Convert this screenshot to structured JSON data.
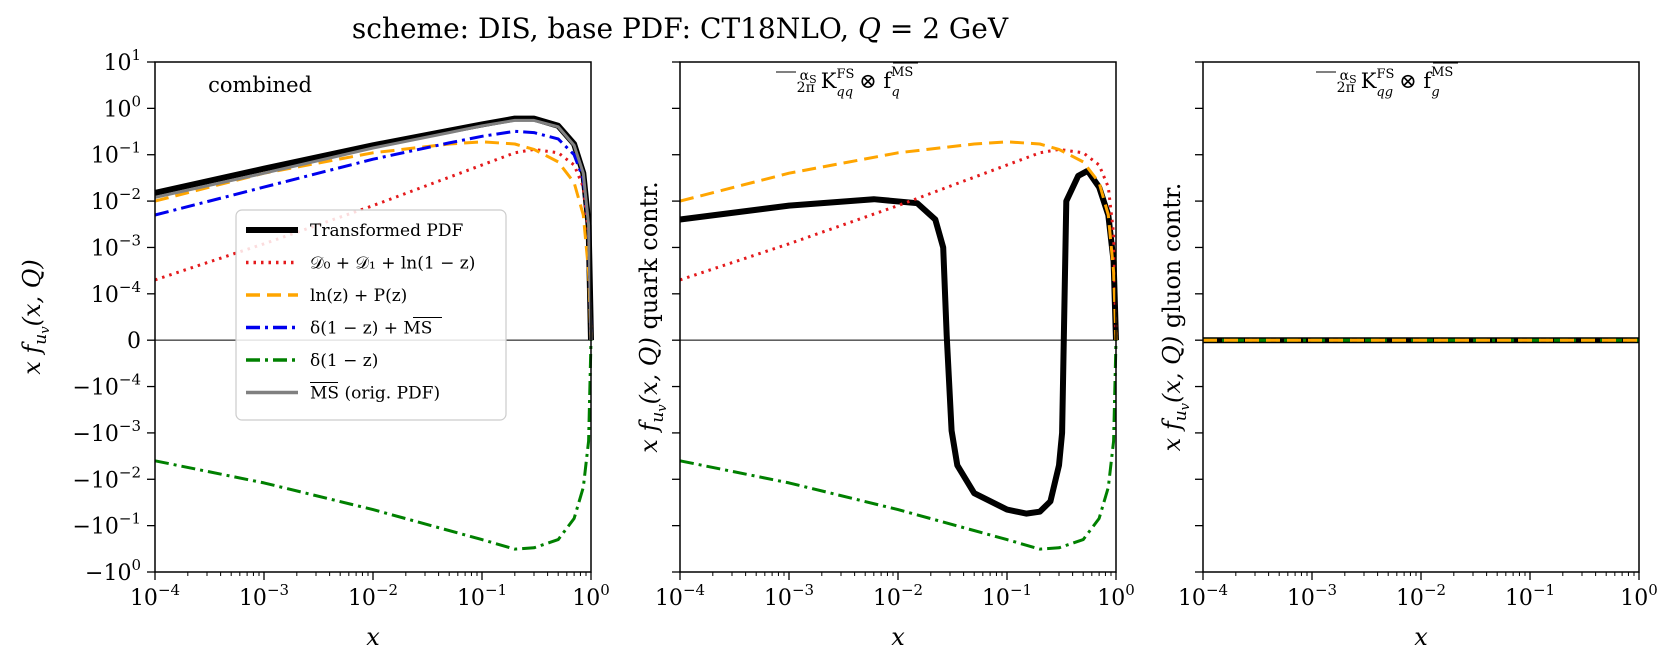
{
  "figure_title": "scheme: DIS, base PDF: CT18NLO, Q = 2 GeV",
  "chart_data": [
    {
      "type": "line",
      "panel": "left",
      "title": "combined",
      "xlabel": "x",
      "ylabel": "x f_{u_v}(x, Q)",
      "xscale": "log",
      "yscale": "symlog",
      "xlim": [
        0.0001,
        1
      ],
      "ylim": [
        -1,
        10
      ],
      "x_ticks": [
        "10^-4",
        "10^-3",
        "10^-2",
        "10^-1",
        "10^0"
      ],
      "y_ticks": [
        "10^1",
        "10^0",
        "10^-1",
        "10^-2",
        "10^-3",
        "10^-4",
        "0",
        "-10^-4",
        "-10^-3",
        "-10^-2",
        "-10^-1",
        "-10^0"
      ],
      "legend_position": "center-left",
      "series": [
        {
          "name": "Transformed PDF",
          "color": "#000000",
          "style": "solid",
          "x": [
            0.0001,
            0.001,
            0.01,
            0.05,
            0.1,
            0.2,
            0.3,
            0.5,
            0.7,
            0.85,
            0.95,
            1.0
          ],
          "y": [
            0.015,
            0.05,
            0.16,
            0.33,
            0.45,
            0.6,
            0.6,
            0.42,
            0.17,
            0.04,
            0.003,
            0
          ]
        },
        {
          "name": "D0 + D1 + ln(1 - z)",
          "color": "#e41a1c",
          "style": "dotted",
          "x": [
            0.0001,
            0.001,
            0.01,
            0.1,
            0.2,
            0.3,
            0.5,
            0.7,
            0.85,
            0.95,
            1.0
          ],
          "y": [
            0.0002,
            0.0012,
            0.008,
            0.06,
            0.11,
            0.13,
            0.11,
            0.06,
            0.02,
            0.002,
            0
          ]
        },
        {
          "name": "ln(z) + P(z)",
          "color": "#ffa500",
          "style": "dashed",
          "x": [
            0.0001,
            0.001,
            0.01,
            0.05,
            0.1,
            0.2,
            0.3,
            0.5,
            0.7,
            0.85,
            0.95,
            1.0
          ],
          "y": [
            0.01,
            0.04,
            0.11,
            0.17,
            0.19,
            0.17,
            0.13,
            0.07,
            0.025,
            0.005,
            0.0003,
            0
          ]
        },
        {
          "name": "δ(1 - z) + MS-bar",
          "color": "#0000ee",
          "style": "dashdot",
          "x": [
            0.0001,
            0.001,
            0.01,
            0.05,
            0.1,
            0.2,
            0.3,
            0.5,
            0.7,
            0.85,
            0.95,
            1.0
          ],
          "y": [
            0.005,
            0.02,
            0.08,
            0.18,
            0.25,
            0.32,
            0.3,
            0.22,
            0.1,
            0.03,
            0.003,
            0
          ]
        },
        {
          "name": "δ(1 - z)",
          "color": "#008000",
          "style": "dashdot",
          "x": [
            0.0001,
            0.001,
            0.01,
            0.1,
            0.2,
            0.3,
            0.5,
            0.7,
            0.85,
            0.95,
            1.0
          ],
          "y": [
            -0.004,
            -0.012,
            -0.045,
            -0.2,
            -0.32,
            -0.3,
            -0.2,
            -0.07,
            -0.015,
            -0.0015,
            0
          ]
        },
        {
          "name": "MS-bar (orig. PDF)",
          "color": "#808080",
          "style": "solid",
          "x": [
            0.0001,
            0.001,
            0.01,
            0.05,
            0.1,
            0.2,
            0.3,
            0.5,
            0.7,
            0.85,
            0.95,
            1.0
          ],
          "y": [
            0.012,
            0.04,
            0.14,
            0.3,
            0.42,
            0.55,
            0.55,
            0.4,
            0.16,
            0.04,
            0.003,
            0
          ]
        }
      ]
    },
    {
      "type": "line",
      "panel": "middle",
      "title": "αS/2π K^FS_qq ⊗ f_q^MS-bar",
      "xlabel": "x",
      "ylabel": "x f_{u_v}(x, Q) quark contr.",
      "xscale": "log",
      "yscale": "symlog",
      "xlim": [
        0.0001,
        1
      ],
      "ylim": [
        -1,
        10
      ],
      "x_ticks": [
        "10^-4",
        "10^-3",
        "10^-2",
        "10^-1",
        "10^0"
      ],
      "series": [
        {
          "name": "Transformed PDF",
          "color": "#000000",
          "style": "solid",
          "x": [
            0.0001,
            0.001,
            0.006,
            0.015,
            0.022,
            0.026,
            0.028,
            0.031,
            0.035,
            0.05,
            0.1,
            0.15,
            0.2,
            0.25,
            0.3,
            0.32,
            0.35,
            0.45,
            0.55,
            0.7,
            0.85,
            0.95,
            1.0
          ],
          "y": [
            0.004,
            0.008,
            0.011,
            0.009,
            0.004,
            0.001,
            1e-05,
            -0.0009,
            -0.005,
            -0.02,
            -0.045,
            -0.055,
            -0.05,
            -0.03,
            -0.005,
            -0.001,
            0.01,
            0.035,
            0.045,
            0.02,
            0.005,
            0.0005,
            0
          ]
        },
        {
          "name": "D0 + D1 + ln(1 - z)",
          "color": "#e41a1c",
          "style": "dotted",
          "x": [
            0.0001,
            0.001,
            0.01,
            0.1,
            0.2,
            0.3,
            0.5,
            0.7,
            0.85,
            0.95,
            1.0
          ],
          "y": [
            0.0002,
            0.0012,
            0.008,
            0.06,
            0.11,
            0.13,
            0.11,
            0.06,
            0.02,
            0.002,
            0
          ]
        },
        {
          "name": "ln(z) + P(z)",
          "color": "#ffa500",
          "style": "dashed",
          "x": [
            0.0001,
            0.001,
            0.01,
            0.05,
            0.1,
            0.2,
            0.3,
            0.5,
            0.7,
            0.85,
            0.95,
            1.0
          ],
          "y": [
            0.01,
            0.04,
            0.11,
            0.17,
            0.19,
            0.17,
            0.13,
            0.07,
            0.025,
            0.005,
            0.0003,
            0
          ]
        },
        {
          "name": "δ(1 - z)",
          "color": "#008000",
          "style": "dashdot",
          "x": [
            0.0001,
            0.001,
            0.01,
            0.1,
            0.2,
            0.3,
            0.5,
            0.7,
            0.85,
            0.95,
            1.0
          ],
          "y": [
            -0.004,
            -0.012,
            -0.045,
            -0.2,
            -0.32,
            -0.3,
            -0.2,
            -0.07,
            -0.015,
            -0.0015,
            0
          ]
        }
      ]
    },
    {
      "type": "line",
      "panel": "right",
      "title": "αS/2π K^FS_qg ⊗ f_g^MS-bar",
      "xlabel": "x",
      "ylabel": "x f_{u_v}(x, Q) gluon contr.",
      "xscale": "log",
      "yscale": "symlog",
      "xlim": [
        0.0001,
        1
      ],
      "ylim": [
        -1,
        10
      ],
      "x_ticks": [
        "10^-4",
        "10^-3",
        "10^-2",
        "10^-1",
        "10^0"
      ],
      "series": [
        {
          "name": "Transformed PDF",
          "color": "#000000",
          "style": "solid",
          "x": [
            0.0001,
            1.0
          ],
          "y": [
            0,
            0
          ]
        },
        {
          "name": "δ(1 - z)",
          "color": "#008000",
          "style": "dashdot",
          "x": [
            0.0001,
            1.0
          ],
          "y": [
            0,
            0
          ]
        },
        {
          "name": "ln(z) + P(z)",
          "color": "#ffa500",
          "style": "dashed",
          "x": [
            0.0001,
            1.0
          ],
          "y": [
            0,
            0
          ]
        }
      ]
    }
  ]
}
